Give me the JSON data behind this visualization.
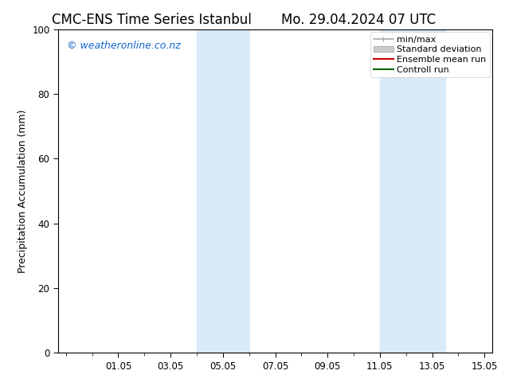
{
  "title_left": "CMC-ENS Time Series Istanbul",
  "title_right": "Mo. 29.04.2024 07 UTC",
  "ylabel": "Precipitation Accumulation (mm)",
  "ylim": [
    0,
    100
  ],
  "yticks": [
    0,
    20,
    40,
    60,
    80,
    100
  ],
  "xtick_labels": [
    "01.05",
    "03.05",
    "05.05",
    "07.05",
    "09.05",
    "11.05",
    "13.05",
    "15.05"
  ],
  "bg_color": "#ffffff",
  "plot_bg_color": "#ffffff",
  "shaded_bands": [
    {
      "xstart": 5.0,
      "xend": 7.0,
      "color": "#daeaf7"
    },
    {
      "xstart": 12.0,
      "xend": 14.5,
      "color": "#daeaf7"
    }
  ],
  "legend_items": [
    {
      "label": "min/max",
      "color": "#aaaaaa",
      "lw": 1.2,
      "style": "minmax"
    },
    {
      "label": "Standard deviation",
      "color": "#cccccc",
      "lw": 6,
      "style": "bar"
    },
    {
      "label": "Ensemble mean run",
      "color": "#cc0000",
      "lw": 1.5,
      "style": "line"
    },
    {
      "label": "Controll run",
      "color": "#006600",
      "lw": 1.5,
      "style": "line"
    }
  ],
  "watermark": "© weatheronline.co.nz",
  "watermark_color": "#1166cc",
  "title_fontsize": 12,
  "axis_fontsize": 9,
  "tick_fontsize": 8.5,
  "watermark_fontsize": 9,
  "legend_fontsize": 8
}
